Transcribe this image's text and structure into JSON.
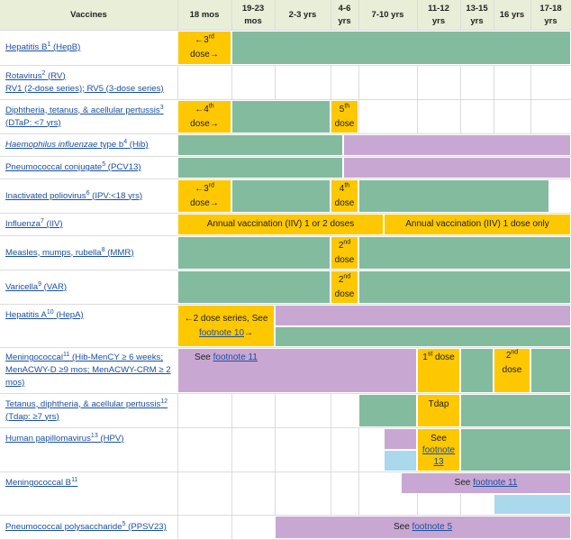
{
  "header": {
    "vaccines": "Vaccines",
    "col_18mos": "18 mos",
    "col_19_23a": "19-23",
    "col_19_23b": "mos",
    "col_2_3": "2-3 yrs",
    "col_4_6a": "4-6",
    "col_4_6b": "yrs",
    "col_7_10": "7-10 yrs",
    "col_11_12a": "11-12",
    "col_11_12b": "yrs",
    "col_13_15a": "13-15",
    "col_13_15b": "yrs",
    "col_16": "16 yrs",
    "col_17_18a": "17-18",
    "col_17_18b": "yrs"
  },
  "colors": {
    "green": "#83bb9e",
    "yellow": "#fdc800",
    "purple": "#c9a7d3",
    "blue": "#aad8ed",
    "link": "#1a4fa0"
  },
  "vaccines": {
    "hepb": {
      "name": "Hepatitis B",
      "fn": "1",
      "abbr": " (HepB)"
    },
    "rv": {
      "name": "Rotavirus",
      "fn": "2",
      "abbr": " (RV)",
      "line2": "RV1 (2-dose series); RV5 (3-dose series)"
    },
    "dtap": {
      "name": "Diphtheria, tetanus, & acellular pertussis",
      "fn": "3",
      "line2": "(DTaP: <7 yrs)"
    },
    "hib": {
      "name": "Haemophilus influenzae",
      "name2": " type b",
      "fn": "4",
      "abbr": " (Hib)"
    },
    "pcv": {
      "name": "Pneumococcal conjugate",
      "fn": "5",
      "abbr": " (PCV13)"
    },
    "ipv": {
      "name": "Inactivated poliovirus",
      "fn": "6",
      "abbr": " (IPV:<18 yrs)"
    },
    "iiv": {
      "name": "Influenza",
      "fn": "7",
      "abbr": " (IIV)"
    },
    "mmr": {
      "name": "Measles, mumps, rubella",
      "fn": "8",
      "abbr": " (MMR)"
    },
    "var": {
      "name": "Varicella",
      "fn": "9",
      "abbr": " (VAR)"
    },
    "hepa": {
      "name": "Hepatitis A",
      "fn": "10",
      "abbr": " (HepA)"
    },
    "mening": {
      "name": "Meningococcal",
      "fn": "11",
      "abbr": " (Hib-MenCY ≥ 6 weeks;",
      "line2": "MenACWY-D ≥9 mos; MenACWY-CRM ≥ 2",
      "line3": "mos)"
    },
    "tdap": {
      "name": "Tetanus, diphtheria, & acellular pertussis",
      "fn": "12",
      "line2": "(Tdap: ≥7 yrs)"
    },
    "hpv": {
      "name": "Human papillomavirus",
      "fn": "13",
      "abbr": " (HPV)"
    },
    "menb": {
      "name": "Meningococcal B",
      "fn": "11"
    },
    "ppsv": {
      "name": "Pneumococcal polysaccharide",
      "fn": "5",
      "abbr": " (PPSV23)"
    }
  },
  "cells": {
    "hepb_18": {
      "a": "←3",
      "sup": "rd",
      "b": "dose→"
    },
    "dtap_18": {
      "a": "←4",
      "sup": "th",
      "b": "dose→"
    },
    "dtap_46": {
      "a": "5",
      "sup": "th",
      "b": "dose"
    },
    "ipv_18": {
      "a": "←3",
      "sup": "rd",
      "b": "dose→"
    },
    "ipv_46": {
      "a": "4",
      "sup": "th",
      "b": "dose"
    },
    "iiv_a": "Annual vaccination (IIV) 1 or 2 doses",
    "iiv_b": "Annual vaccination (IIV) 1 dose only",
    "mmr_46": {
      "a": "2",
      "sup": "nd",
      "b": "dose"
    },
    "var_46": {
      "a": "2",
      "sup": "nd",
      "b": "dose"
    },
    "hepa_18": {
      "a": "←2 dose series, See",
      "link": "footnote 10",
      "b": "→"
    },
    "mening_18": {
      "a": "See ",
      "link": "footnote 11"
    },
    "mening_11": {
      "a": "1",
      "sup": "st",
      "b": " dose"
    },
    "mening_16": {
      "a": "2",
      "sup": "nd",
      "b": "dose"
    },
    "tdap_11": "Tdap",
    "hpv_11": {
      "a": "See",
      "link1": "footnote",
      "link2": "13"
    },
    "menb_span": {
      "a": "See ",
      "link": "footnote 11"
    },
    "ppsv_span": {
      "a": "See ",
      "link": "footnote 5"
    }
  }
}
